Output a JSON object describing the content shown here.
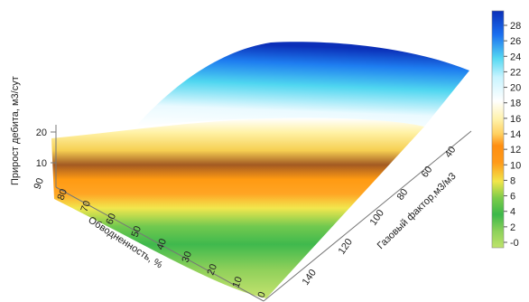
{
  "chart_data": {
    "type": "surface",
    "title": "",
    "axes": {
      "x": {
        "label": "Обводненность, %",
        "ticks": [
          "0",
          "10",
          "20",
          "30",
          "40",
          "50",
          "60",
          "70",
          "80",
          "90"
        ],
        "range": [
          0,
          90
        ]
      },
      "y": {
        "label": "Газовый фактор,м3/м3",
        "ticks": [
          "140",
          "120",
          "100",
          "80",
          "60",
          "40"
        ],
        "range": [
          40,
          140
        ]
      },
      "z": {
        "label": "Прирост дебита, м3/сут",
        "ticks": [
          "10",
          "20"
        ],
        "range": [
          0,
          30
        ]
      }
    },
    "colorbar": {
      "ticks": [
        "-0",
        "2",
        "4",
        "6",
        "8",
        "10",
        "12",
        "14",
        "16",
        "18",
        "20",
        "22",
        "24",
        "26",
        "28"
      ],
      "range": [
        0,
        30
      ],
      "colors": [
        "#bfe36b",
        "#6fcf4f",
        "#3cb84a",
        "#7ccc4a",
        "#f2e64a",
        "#ff9a1a",
        "#ffd060",
        "#fff1a8",
        "#ffffff",
        "#c8f4ff",
        "#55d8f2",
        "#1a6ff0",
        "#0a2fb8"
      ]
    }
  }
}
